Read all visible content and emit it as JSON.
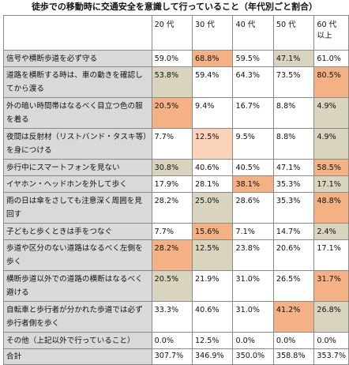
{
  "title": "徒歩での移動時に交通安全を意識して行っていること（年代別ごと割合）",
  "colors": {
    "gray": "#d9d9d9",
    "orange": "#f4b183",
    "light-orange": "#fbd3b8",
    "tan": "#d9d4be",
    "white": "#ffffff"
  },
  "chart_data": {
    "type": "table",
    "title": "徒歩での移動時に交通安全を意識して行っていること（年代別ごと割合）",
    "columns": [
      "20 代",
      "30 代",
      "40 代",
      "50 代",
      "60 代\n以上"
    ],
    "rows": [
      {
        "label": "信号や横断歩道を必ず守る",
        "values": [
          "59.0%",
          "68.8%",
          "59.5%",
          "47.1%",
          "61.0%"
        ],
        "shade": [
          "w",
          "o",
          "w",
          "t",
          "w"
        ],
        "tall": false
      },
      {
        "label": "道路を横断する時は、車の動きを確認してから渡る",
        "values": [
          "53.8%",
          "59.4%",
          "64.3%",
          "73.5%",
          "80.5%"
        ],
        "shade": [
          "t",
          "w",
          "w",
          "w",
          "o"
        ],
        "tall": true
      },
      {
        "label": "外の暗い時間帯はなるべく目立つ色の服を着る",
        "values": [
          "20.5%",
          "9.4%",
          "16.7%",
          "8.8%",
          "4.9%"
        ],
        "shade": [
          "o",
          "w",
          "w",
          "w",
          "t"
        ],
        "tall": true
      },
      {
        "label": "夜間は反射材（リストバンド・タスキ等）を身につける",
        "values": [
          "7.7%",
          "12.5%",
          "9.5%",
          "8.8%",
          "4.9%"
        ],
        "shade": [
          "w",
          "l",
          "w",
          "w",
          "t"
        ],
        "tall": true
      },
      {
        "label": "歩行中にスマートフォンを見ない",
        "values": [
          "30.8%",
          "40.6%",
          "40.5%",
          "47.1%",
          "58.5%"
        ],
        "shade": [
          "t",
          "w",
          "w",
          "w",
          "o"
        ],
        "tall": false
      },
      {
        "label": "イヤホン・ヘッドホンを外して歩く",
        "values": [
          "17.9%",
          "28.1%",
          "38.1%",
          "35.3%",
          "17.1%"
        ],
        "shade": [
          "w",
          "w",
          "o",
          "w",
          "t"
        ],
        "tall": false
      },
      {
        "label": "雨の日は傘をさしても注意深く周囲を見回す",
        "values": [
          "28.2%",
          "25.0%",
          "28.6%",
          "35.3%",
          "48.8%"
        ],
        "shade": [
          "w",
          "t",
          "w",
          "w",
          "o"
        ],
        "tall": true
      },
      {
        "label": "子どもと歩くときは手をつなぐ",
        "values": [
          "7.7%",
          "15.6%",
          "7.1%",
          "14.7%",
          "2.4%"
        ],
        "shade": [
          "w",
          "o",
          "w",
          "w",
          "t"
        ],
        "tall": false
      },
      {
        "label": "歩道や区分のない道路はなるべく左側を歩く",
        "values": [
          "28.2%",
          "12.5%",
          "23.8%",
          "20.6%",
          "17.1%"
        ],
        "shade": [
          "o",
          "t",
          "w",
          "w",
          "w"
        ],
        "tall": true
      },
      {
        "label": "横断歩道以外での道路の横断はなるべく避ける",
        "values": [
          "20.5%",
          "21.9%",
          "31.0%",
          "26.5%",
          "31.7%"
        ],
        "shade": [
          "t",
          "w",
          "w",
          "w",
          "o"
        ],
        "tall": true
      },
      {
        "label": "自転車と歩行者が分かれた歩道では必ず歩行者側を歩く",
        "values": [
          "33.3%",
          "40.6%",
          "31.0%",
          "41.2%",
          "26.8%"
        ],
        "shade": [
          "w",
          "w",
          "w",
          "o",
          "t"
        ],
        "tall": true
      },
      {
        "label": "その他（上記以外で行っていること）",
        "values": [
          "0.0%",
          "12.5%",
          "0.0%",
          "0.0%",
          "0.0%"
        ],
        "shade": [
          "w",
          "w",
          "w",
          "w",
          "w"
        ],
        "tall": false
      }
    ],
    "total": {
      "label": "合計",
      "values": [
        "307.7%",
        "346.9%",
        "350.0%",
        "358.8%",
        "353.7%"
      ]
    }
  }
}
